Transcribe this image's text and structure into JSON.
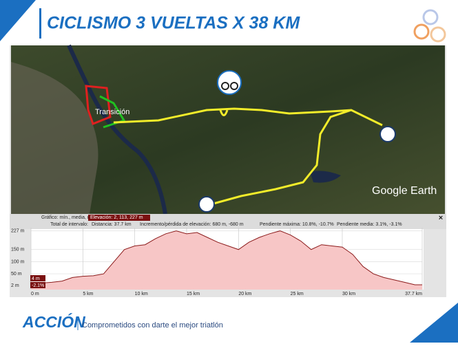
{
  "header": {
    "title": "CICLISMO 3 VUELTAS X 38 KM"
  },
  "map": {
    "labels": [
      "Transición",
      "Google Earth"
    ]
  },
  "stats": {
    "row1": [
      "Gráfico: mín., media, máx.",
      "Elevación: 2, 113, 227 m"
    ],
    "row2": [
      "Total de intervalo:",
      "Distancia: 37.7 km",
      "Incremento/pérdida de elevación: 680 m, -680 m",
      "Pendiente máxima: 10.8%, -10.7%",
      "Pendiente media: 3.1%, -3.1%"
    ],
    "close": "×",
    "cursor": [
      "4 m",
      "-2.1%"
    ]
  },
  "chart_data": {
    "type": "area",
    "x": [
      0,
      1,
      2,
      3,
      4,
      5,
      6,
      7,
      8,
      9,
      10,
      11,
      12,
      13,
      14,
      15,
      16,
      17,
      18,
      19,
      20,
      21,
      22,
      23,
      24,
      25,
      26,
      27,
      28,
      29,
      30,
      31,
      32,
      33,
      34,
      35,
      36,
      37,
      37.7
    ],
    "values": [
      10,
      12,
      15,
      20,
      35,
      40,
      42,
      50,
      100,
      150,
      165,
      170,
      195,
      215,
      227,
      215,
      220,
      200,
      180,
      165,
      150,
      180,
      200,
      215,
      227,
      210,
      185,
      150,
      170,
      165,
      160,
      130,
      80,
      50,
      35,
      25,
      15,
      5,
      5
    ],
    "color": "#8b1a1a",
    "fill": "#f7c6c6",
    "xlim": [
      0,
      37.7
    ],
    "ylim": [
      -15,
      240
    ],
    "xticks": [
      {
        "value": 0,
        "label": "0 m"
      },
      {
        "value": 5,
        "label": "5 km"
      },
      {
        "value": 10,
        "label": "10 km"
      },
      {
        "value": 15,
        "label": "15 km"
      },
      {
        "value": 20,
        "label": "20 km"
      },
      {
        "value": 25,
        "label": "25 km"
      },
      {
        "value": 30,
        "label": "30 km"
      },
      {
        "value": 37.7,
        "label": "37.7 km"
      }
    ],
    "yticks": [
      {
        "value": 2,
        "label": "2 m"
      },
      {
        "value": 50,
        "label": "50 m"
      },
      {
        "value": 100,
        "label": "100 m"
      },
      {
        "value": 150,
        "label": "150 m"
      },
      {
        "value": 227,
        "label": "227 m"
      }
    ],
    "grid": true
  },
  "footer": {
    "brand": "ACCIÓN",
    "slogan": "Comprometidos con darte el mejor triatlón"
  }
}
